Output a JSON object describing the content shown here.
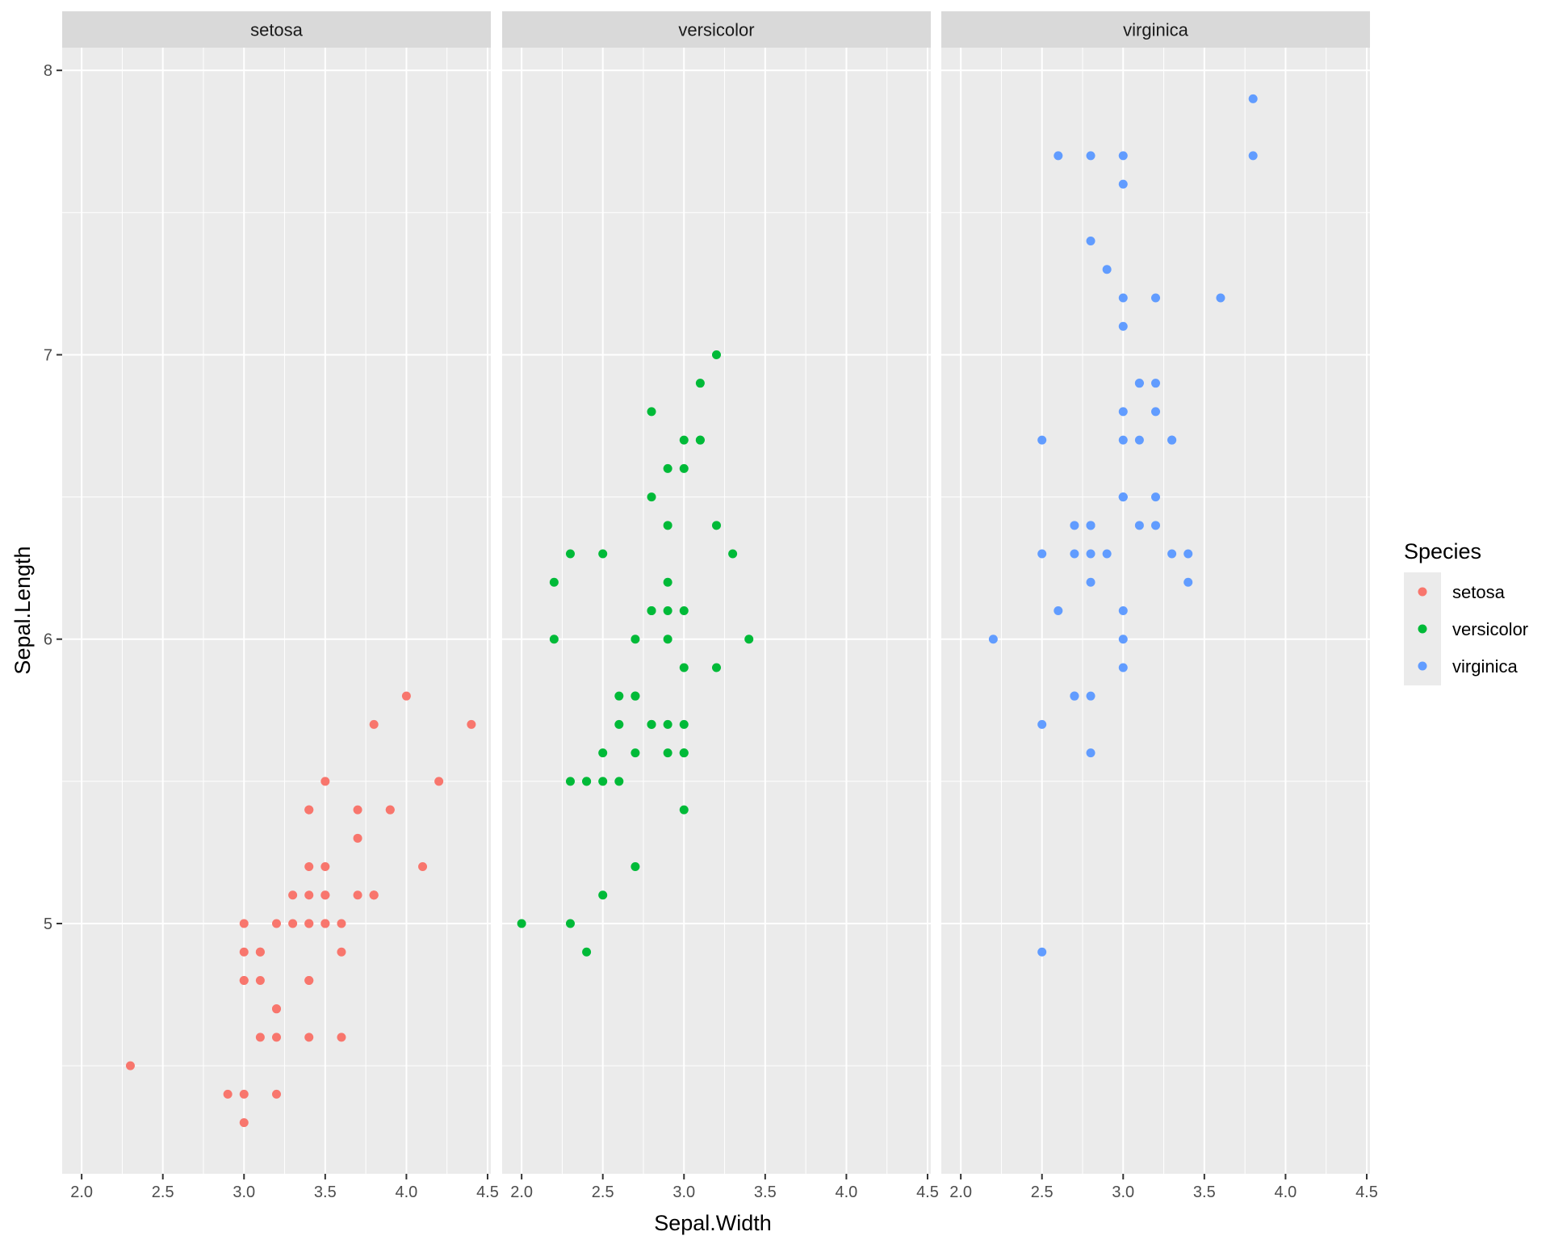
{
  "chart_data": {
    "type": "scatter",
    "facet_by": "Species",
    "facets": [
      "setosa",
      "versicolor",
      "virginica"
    ],
    "xlabel": "Sepal.Width",
    "ylabel": "Sepal.Length",
    "xlim": [
      1.88,
      4.52
    ],
    "ylim": [
      4.12,
      8.08
    ],
    "xticks": [
      2.0,
      2.5,
      3.0,
      3.5,
      4.0,
      4.5
    ],
    "xtick_labels": [
      "2.0",
      "2.5",
      "3.0",
      "3.5",
      "4.0",
      "4.5"
    ],
    "yticks": [
      5,
      6,
      7,
      8
    ],
    "ytick_labels": [
      "5",
      "6",
      "7",
      "8"
    ],
    "grid": true,
    "legend": {
      "title": "Species",
      "position": "right",
      "entries": [
        {
          "label": "setosa",
          "color": "#F8766D"
        },
        {
          "label": "versicolor",
          "color": "#00BA38"
        },
        {
          "label": "virginica",
          "color": "#619CFF"
        }
      ]
    },
    "series": [
      {
        "name": "setosa",
        "color": "#F8766D",
        "points": [
          [
            3.5,
            5.1
          ],
          [
            3.0,
            4.9
          ],
          [
            3.2,
            4.7
          ],
          [
            3.1,
            4.6
          ],
          [
            3.6,
            5.0
          ],
          [
            3.9,
            5.4
          ],
          [
            3.4,
            4.6
          ],
          [
            3.4,
            5.0
          ],
          [
            2.9,
            4.4
          ],
          [
            3.1,
            4.9
          ],
          [
            3.7,
            5.4
          ],
          [
            3.4,
            4.8
          ],
          [
            3.0,
            4.8
          ],
          [
            3.0,
            4.3
          ],
          [
            4.0,
            5.8
          ],
          [
            4.4,
            5.7
          ],
          [
            3.9,
            5.4
          ],
          [
            3.5,
            5.1
          ],
          [
            3.8,
            5.7
          ],
          [
            3.8,
            5.1
          ],
          [
            3.4,
            5.4
          ],
          [
            3.7,
            5.1
          ],
          [
            3.6,
            4.6
          ],
          [
            3.3,
            5.1
          ],
          [
            3.4,
            4.8
          ],
          [
            3.0,
            5.0
          ],
          [
            3.4,
            5.0
          ],
          [
            3.5,
            5.2
          ],
          [
            3.4,
            5.2
          ],
          [
            3.2,
            4.7
          ],
          [
            3.1,
            4.8
          ],
          [
            3.4,
            5.4
          ],
          [
            4.1,
            5.2
          ],
          [
            4.2,
            5.5
          ],
          [
            3.1,
            4.9
          ],
          [
            3.2,
            5.0
          ],
          [
            3.5,
            5.5
          ],
          [
            3.6,
            4.9
          ],
          [
            3.0,
            4.4
          ],
          [
            3.4,
            5.1
          ],
          [
            3.5,
            5.0
          ],
          [
            2.3,
            4.5
          ],
          [
            3.2,
            4.4
          ],
          [
            3.5,
            5.0
          ],
          [
            3.8,
            5.1
          ],
          [
            3.0,
            4.8
          ],
          [
            3.8,
            5.1
          ],
          [
            3.2,
            4.6
          ],
          [
            3.7,
            5.3
          ],
          [
            3.3,
            5.0
          ]
        ]
      },
      {
        "name": "versicolor",
        "color": "#00BA38",
        "points": [
          [
            3.2,
            7.0
          ],
          [
            3.2,
            6.4
          ],
          [
            3.1,
            6.9
          ],
          [
            2.3,
            5.5
          ],
          [
            2.8,
            6.5
          ],
          [
            2.8,
            5.7
          ],
          [
            3.3,
            6.3
          ],
          [
            2.4,
            4.9
          ],
          [
            2.9,
            6.6
          ],
          [
            2.7,
            5.2
          ],
          [
            2.0,
            5.0
          ],
          [
            3.0,
            5.9
          ],
          [
            2.2,
            6.0
          ],
          [
            2.9,
            6.1
          ],
          [
            2.9,
            5.6
          ],
          [
            3.1,
            6.7
          ],
          [
            3.0,
            5.6
          ],
          [
            2.7,
            5.8
          ],
          [
            2.2,
            6.2
          ],
          [
            2.5,
            5.6
          ],
          [
            3.2,
            5.9
          ],
          [
            2.8,
            6.1
          ],
          [
            2.5,
            6.3
          ],
          [
            2.8,
            6.1
          ],
          [
            2.9,
            6.4
          ],
          [
            3.0,
            6.6
          ],
          [
            2.8,
            6.8
          ],
          [
            3.0,
            6.7
          ],
          [
            2.9,
            6.0
          ],
          [
            2.6,
            5.7
          ],
          [
            2.4,
            5.5
          ],
          [
            2.4,
            5.5
          ],
          [
            2.7,
            5.8
          ],
          [
            2.7,
            6.0
          ],
          [
            3.0,
            5.4
          ],
          [
            3.4,
            6.0
          ],
          [
            3.1,
            6.7
          ],
          [
            2.3,
            6.3
          ],
          [
            3.0,
            5.6
          ],
          [
            2.5,
            5.5
          ],
          [
            2.6,
            5.5
          ],
          [
            3.0,
            6.1
          ],
          [
            2.6,
            5.8
          ],
          [
            2.3,
            5.0
          ],
          [
            2.7,
            5.6
          ],
          [
            3.0,
            5.7
          ],
          [
            2.9,
            5.7
          ],
          [
            2.9,
            6.2
          ],
          [
            2.5,
            5.1
          ],
          [
            2.8,
            5.7
          ]
        ]
      },
      {
        "name": "virginica",
        "color": "#619CFF",
        "points": [
          [
            3.3,
            6.3
          ],
          [
            2.7,
            5.8
          ],
          [
            3.0,
            7.1
          ],
          [
            2.9,
            6.3
          ],
          [
            3.0,
            6.5
          ],
          [
            3.0,
            7.6
          ],
          [
            2.5,
            4.9
          ],
          [
            2.9,
            7.3
          ],
          [
            2.5,
            6.7
          ],
          [
            3.6,
            7.2
          ],
          [
            3.2,
            6.5
          ],
          [
            2.7,
            6.4
          ],
          [
            3.0,
            6.8
          ],
          [
            2.5,
            5.7
          ],
          [
            2.8,
            5.8
          ],
          [
            3.2,
            6.4
          ],
          [
            3.0,
            6.5
          ],
          [
            3.8,
            7.7
          ],
          [
            2.6,
            7.7
          ],
          [
            2.2,
            6.0
          ],
          [
            3.2,
            6.9
          ],
          [
            2.8,
            5.6
          ],
          [
            2.8,
            7.7
          ],
          [
            2.7,
            6.3
          ],
          [
            3.3,
            6.7
          ],
          [
            3.2,
            7.2
          ],
          [
            2.8,
            6.2
          ],
          [
            3.0,
            6.1
          ],
          [
            2.8,
            6.4
          ],
          [
            3.0,
            7.2
          ],
          [
            2.8,
            7.4
          ],
          [
            3.8,
            7.9
          ],
          [
            2.8,
            6.4
          ],
          [
            2.8,
            6.3
          ],
          [
            2.6,
            6.1
          ],
          [
            3.0,
            7.7
          ],
          [
            3.4,
            6.3
          ],
          [
            3.1,
            6.4
          ],
          [
            3.0,
            6.0
          ],
          [
            3.1,
            6.9
          ],
          [
            3.1,
            6.7
          ],
          [
            3.1,
            6.9
          ],
          [
            2.7,
            5.8
          ],
          [
            3.2,
            6.8
          ],
          [
            3.3,
            6.7
          ],
          [
            3.0,
            6.7
          ],
          [
            2.5,
            6.3
          ],
          [
            3.0,
            6.5
          ],
          [
            3.4,
            6.2
          ],
          [
            3.0,
            5.9
          ]
        ]
      }
    ]
  }
}
